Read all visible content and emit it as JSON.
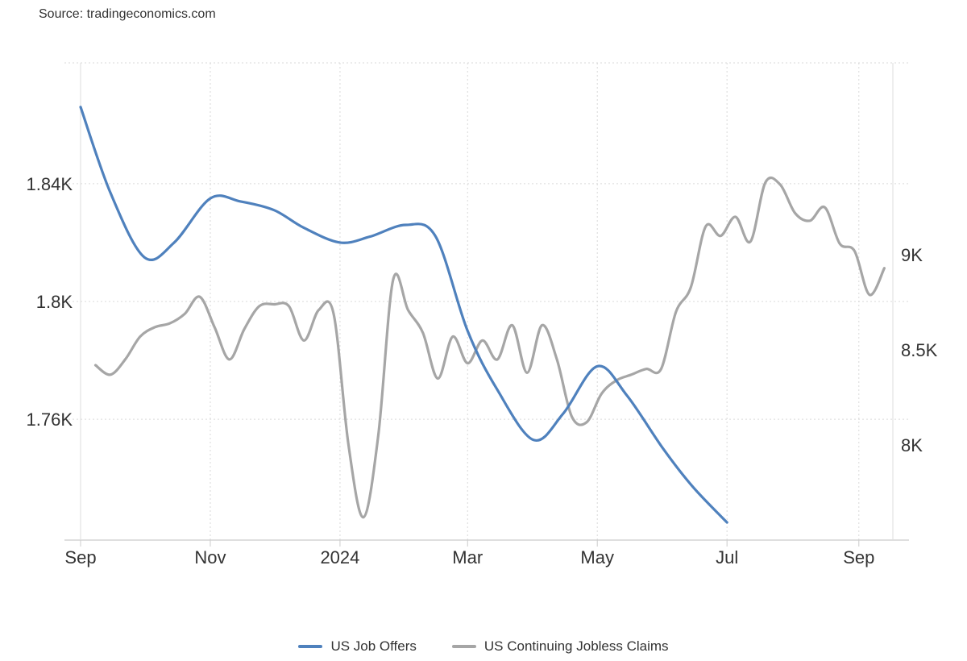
{
  "source": "Source: tradingeconomics.com",
  "chart_data": {
    "type": "line",
    "title": "",
    "xlabel": "",
    "ylabel": "",
    "x_ticks": [
      "Sep",
      "Nov",
      "2024",
      "Mar",
      "May",
      "Jul",
      "Sep"
    ],
    "y_left": {
      "ticks": [
        1760,
        1800,
        1840
      ],
      "tick_labels": [
        "1.76K",
        "1.8K",
        "1.84K"
      ],
      "range": [
        1719,
        1881
      ]
    },
    "y_right": {
      "ticks": [
        8000,
        8500,
        9000
      ],
      "tick_labels": [
        "8K",
        "8.5K",
        "9K"
      ],
      "range": [
        7500,
        10010
      ]
    },
    "grid": true,
    "legend_position": "bottom-center",
    "series": [
      {
        "name": "US Job Offers",
        "axis": "left",
        "color": "#4f81bd",
        "points": [
          [
            "2023-09-01",
            1866
          ],
          [
            "2023-09-15",
            1837
          ],
          [
            "2023-10-01",
            1815
          ],
          [
            "2023-10-15",
            1820
          ],
          [
            "2023-11-01",
            1835
          ],
          [
            "2023-11-15",
            1834
          ],
          [
            "2023-12-01",
            1831
          ],
          [
            "2023-12-15",
            1825
          ],
          [
            "2024-01-01",
            1820
          ],
          [
            "2024-01-15",
            1822
          ],
          [
            "2024-02-01",
            1826
          ],
          [
            "2024-02-15",
            1822
          ],
          [
            "2024-03-01",
            1790
          ],
          [
            "2024-03-15",
            1770
          ],
          [
            "2024-04-01",
            1753
          ],
          [
            "2024-04-15",
            1762
          ],
          [
            "2024-05-01",
            1778
          ],
          [
            "2024-05-15",
            1768
          ],
          [
            "2024-06-01",
            1750
          ],
          [
            "2024-06-15",
            1737
          ],
          [
            "2024-07-01",
            1725
          ]
        ]
      },
      {
        "name": "US Continuing Jobless Claims",
        "axis": "right",
        "color": "#a6a6a6",
        "points": [
          [
            "2023-09-08",
            8420
          ],
          [
            "2023-09-15",
            8370
          ],
          [
            "2023-09-22",
            8450
          ],
          [
            "2023-09-29",
            8570
          ],
          [
            "2023-10-06",
            8620
          ],
          [
            "2023-10-13",
            8640
          ],
          [
            "2023-10-20",
            8690
          ],
          [
            "2023-10-27",
            8780
          ],
          [
            "2023-11-03",
            8620
          ],
          [
            "2023-11-10",
            8450
          ],
          [
            "2023-11-17",
            8610
          ],
          [
            "2023-11-24",
            8730
          ],
          [
            "2023-12-01",
            8740
          ],
          [
            "2023-12-08",
            8730
          ],
          [
            "2023-12-15",
            8550
          ],
          [
            "2023-12-22",
            8710
          ],
          [
            "2023-12-29",
            8690
          ],
          [
            "2024-01-05",
            8000
          ],
          [
            "2024-01-12",
            7620
          ],
          [
            "2024-01-19",
            8050
          ],
          [
            "2024-01-26",
            8870
          ],
          [
            "2024-02-02",
            8710
          ],
          [
            "2024-02-09",
            8590
          ],
          [
            "2024-02-16",
            8350
          ],
          [
            "2024-02-23",
            8570
          ],
          [
            "2024-03-01",
            8430
          ],
          [
            "2024-03-08",
            8550
          ],
          [
            "2024-03-15",
            8450
          ],
          [
            "2024-03-22",
            8630
          ],
          [
            "2024-03-29",
            8380
          ],
          [
            "2024-04-05",
            8630
          ],
          [
            "2024-04-12",
            8450
          ],
          [
            "2024-04-19",
            8150
          ],
          [
            "2024-04-26",
            8120
          ],
          [
            "2024-05-03",
            8270
          ],
          [
            "2024-05-10",
            8340
          ],
          [
            "2024-05-17",
            8370
          ],
          [
            "2024-05-24",
            8400
          ],
          [
            "2024-05-31",
            8400
          ],
          [
            "2024-06-07",
            8700
          ],
          [
            "2024-06-14",
            8830
          ],
          [
            "2024-06-21",
            9150
          ],
          [
            "2024-06-28",
            9100
          ],
          [
            "2024-07-05",
            9200
          ],
          [
            "2024-07-12",
            9070
          ],
          [
            "2024-07-19",
            9380
          ],
          [
            "2024-07-26",
            9370
          ],
          [
            "2024-08-02",
            9220
          ],
          [
            "2024-08-09",
            9180
          ],
          [
            "2024-08-16",
            9250
          ],
          [
            "2024-08-23",
            9060
          ],
          [
            "2024-08-30",
            9020
          ],
          [
            "2024-09-06",
            8790
          ],
          [
            "2024-09-13",
            8930
          ]
        ]
      }
    ]
  }
}
